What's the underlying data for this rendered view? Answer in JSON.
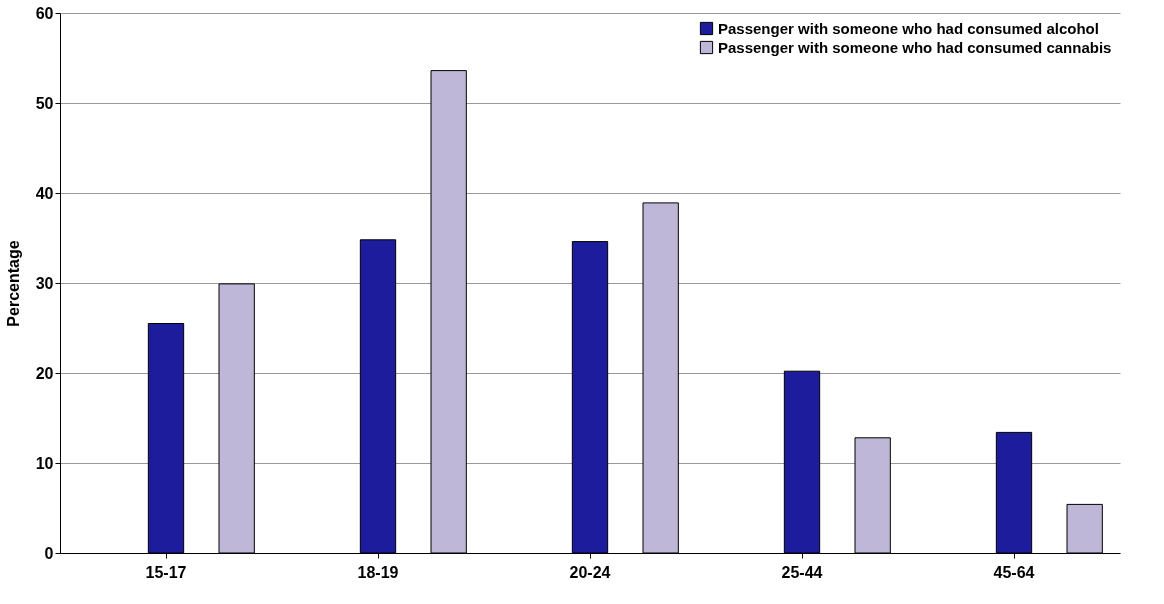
{
  "chart_data": {
    "type": "bar",
    "ylabel": "Percentage",
    "categories": [
      "15-17",
      "18-19",
      "20-24",
      "25-44",
      "45-64"
    ],
    "series": [
      {
        "name": "Passenger with someone who had consumed alcohol",
        "color": "#1c1c9c",
        "values": [
          25.5,
          34.8,
          34.6,
          20.2,
          13.4
        ]
      },
      {
        "name": "Passenger with someone who had consumed cannabis",
        "color": "#bfb7d7",
        "values": [
          29.9,
          53.6,
          38.9,
          12.8,
          5.4
        ]
      }
    ],
    "ylim": [
      0,
      60
    ],
    "yticks": [
      0,
      10,
      20,
      30,
      40,
      50,
      60
    ],
    "grid": "y",
    "legend": "top right"
  }
}
